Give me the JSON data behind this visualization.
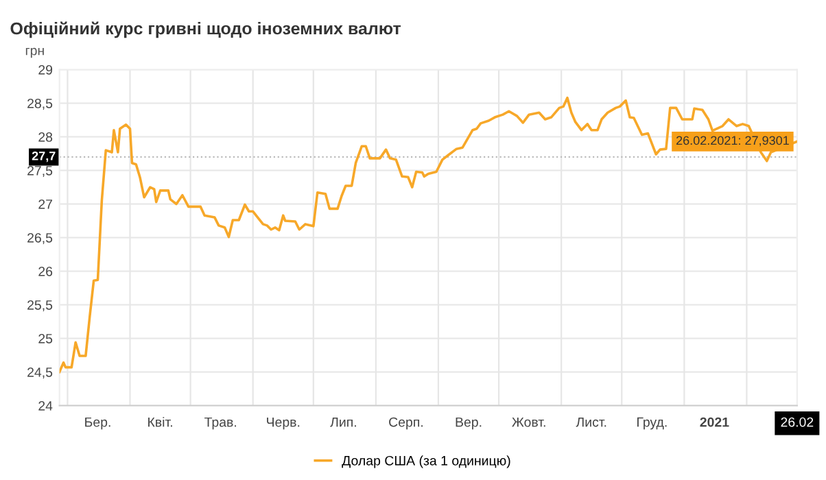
{
  "chart_data": {
    "type": "line",
    "title": "Офіційний курс гривні щодо іноземних валют",
    "ylabel": "грн",
    "xlim": [
      "2020-02-26",
      "2021-02-26"
    ],
    "ylim": [
      24,
      29
    ],
    "yticks": [
      24,
      {
        "value": 24.5,
        "label": "24,5"
      },
      25,
      {
        "value": 25.5,
        "label": "25,5"
      },
      26,
      {
        "value": 26.5,
        "label": "26,5"
      },
      27,
      {
        "value": 27.5,
        "label": "27,5"
      },
      28,
      {
        "value": 28.5,
        "label": "28,5"
      },
      29
    ],
    "xticks": [
      {
        "value": "2020-03-01",
        "label": null
      },
      {
        "value": "2020-04-01",
        "label": null
      },
      {
        "value": "2020-05-01",
        "label": null
      },
      {
        "value": "2020-06-01",
        "label": null
      },
      {
        "value": "2020-07-01",
        "label": null
      },
      {
        "value": "2020-08-01",
        "label": null
      },
      {
        "value": "2020-09-01",
        "label": null
      },
      {
        "value": "2020-10-01",
        "label": null
      },
      {
        "value": "2020-11-01",
        "label": null
      },
      {
        "value": "2020-12-01",
        "label": null
      },
      {
        "value": "2021-01-01",
        "label": null
      },
      {
        "value": "2021-02-01",
        "label": null
      },
      {
        "value": "2020-03-16",
        "label": "Бер."
      },
      {
        "value": "2020-04-16",
        "label": "Квіт."
      },
      {
        "value": "2020-05-16",
        "label": "Трав."
      },
      {
        "value": "2020-06-16",
        "label": "Черв."
      },
      {
        "value": "2020-07-16",
        "label": "Лип."
      },
      {
        "value": "2020-08-16",
        "label": "Серп."
      },
      {
        "value": "2020-09-16",
        "label": "Вер."
      },
      {
        "value": "2020-10-16",
        "label": "Жовт."
      },
      {
        "value": "2020-11-16",
        "label": "Лист."
      },
      {
        "value": "2020-12-16",
        "label": "Груд."
      },
      {
        "value": "2021-01-16",
        "label": "2021"
      },
      {
        "value": "2021-02-26",
        "label": "26.02"
      }
    ],
    "grid": true,
    "legend": "bottom",
    "marker": "none",
    "line_style": "solid",
    "ref_lines": [
      {
        "axis": "y",
        "value": 27.7,
        "label": "27,7",
        "color": "#bbbbbb",
        "line_style": "dotted"
      }
    ],
    "annotations": [
      {
        "text": "26.02.2021: 27,9301",
        "x": "2021-02-26",
        "y": 27.9301
      }
    ],
    "series": [
      {
        "name": "Долар США (за 1 одиницю)",
        "color": "#f7a829",
        "x": [
          "2020-02-26",
          "2020-02-28",
          "2020-02-29",
          "2020-03-03",
          "2020-03-05",
          "2020-03-07",
          "2020-03-10",
          "2020-03-12",
          "2020-03-14",
          "2020-03-16",
          "2020-03-18",
          "2020-03-20",
          "2020-03-23",
          "2020-03-24",
          "2020-03-26",
          "2020-03-27",
          "2020-03-30",
          "2020-04-01",
          "2020-04-02",
          "2020-04-04",
          "2020-04-06",
          "2020-04-08",
          "2020-04-11",
          "2020-04-13",
          "2020-04-14",
          "2020-04-16",
          "2020-04-20",
          "2020-04-21",
          "2020-04-24",
          "2020-04-27",
          "2020-04-30",
          "2020-05-06",
          "2020-05-08",
          "2020-05-13",
          "2020-05-15",
          "2020-05-18",
          "2020-05-20",
          "2020-05-22",
          "2020-05-25",
          "2020-05-28",
          "2020-05-30",
          "2020-06-01",
          "2020-06-06",
          "2020-06-08",
          "2020-06-10",
          "2020-06-12",
          "2020-06-14",
          "2020-06-16",
          "2020-06-17",
          "2020-06-22",
          "2020-06-24",
          "2020-06-27",
          "2020-07-01",
          "2020-07-03",
          "2020-07-07",
          "2020-07-09",
          "2020-07-13",
          "2020-07-15",
          "2020-07-17",
          "2020-07-20",
          "2020-07-22",
          "2020-07-25",
          "2020-07-27",
          "2020-07-29",
          "2020-08-03",
          "2020-08-06",
          "2020-08-08",
          "2020-08-11",
          "2020-08-14",
          "2020-08-17",
          "2020-08-19",
          "2020-08-21",
          "2020-08-24",
          "2020-08-25",
          "2020-08-27",
          "2020-08-31",
          "2020-09-03",
          "2020-09-06",
          "2020-09-10",
          "2020-09-13",
          "2020-09-18",
          "2020-09-20",
          "2020-09-22",
          "2020-09-26",
          "2020-09-29",
          "2020-10-03",
          "2020-10-06",
          "2020-10-10",
          "2020-10-13",
          "2020-10-16",
          "2020-10-21",
          "2020-10-24",
          "2020-10-27",
          "2020-10-31",
          "2020-11-02",
          "2020-11-04",
          "2020-11-06",
          "2020-11-08",
          "2020-11-11",
          "2020-11-14",
          "2020-11-16",
          "2020-11-19",
          "2020-11-21",
          "2020-11-24",
          "2020-11-28",
          "2020-11-30",
          "2020-12-03",
          "2020-12-05",
          "2020-12-07",
          "2020-12-11",
          "2020-12-14",
          "2020-12-18",
          "2020-12-20",
          "2020-12-23",
          "2020-12-25",
          "2020-12-28",
          "2020-12-31",
          "2021-01-05",
          "2021-01-06",
          "2021-01-10",
          "2021-01-13",
          "2021-01-15",
          "2021-01-20",
          "2021-01-23",
          "2021-01-27",
          "2021-01-30",
          "2021-02-02",
          "2021-02-08",
          "2021-02-11",
          "2021-02-13",
          "2021-02-26"
        ],
        "values": [
          24.5,
          24.64,
          24.57,
          24.57,
          24.94,
          24.74,
          24.74,
          25.32,
          25.86,
          25.87,
          27.05,
          27.8,
          27.77,
          28.1,
          27.77,
          28.12,
          28.18,
          28.12,
          27.61,
          27.59,
          27.39,
          27.1,
          27.25,
          27.22,
          27.03,
          27.2,
          27.2,
          27.07,
          27.0,
          27.13,
          26.96,
          26.96,
          26.83,
          26.8,
          26.68,
          26.65,
          26.51,
          26.76,
          26.76,
          26.99,
          26.89,
          26.89,
          26.7,
          26.68,
          26.62,
          26.65,
          26.61,
          26.83,
          26.75,
          26.74,
          26.62,
          26.7,
          26.67,
          27.17,
          27.15,
          26.93,
          26.93,
          27.12,
          27.27,
          27.27,
          27.61,
          27.86,
          27.86,
          27.68,
          27.68,
          27.81,
          27.68,
          27.66,
          27.41,
          27.4,
          27.25,
          27.48,
          27.47,
          27.41,
          27.45,
          27.48,
          27.66,
          27.73,
          27.82,
          27.84,
          28.1,
          28.12,
          28.2,
          28.24,
          28.29,
          28.33,
          28.38,
          28.31,
          28.21,
          28.33,
          28.36,
          28.26,
          28.29,
          28.43,
          28.45,
          28.58,
          28.36,
          28.22,
          28.1,
          28.19,
          28.1,
          28.1,
          28.26,
          28.36,
          28.43,
          28.45,
          28.54,
          28.29,
          28.28,
          28.03,
          28.05,
          27.74,
          27.81,
          27.82,
          28.43,
          28.43,
          28.26,
          28.26,
          28.42,
          28.4,
          28.26,
          28.09,
          28.16,
          28.26,
          28.16,
          28.19,
          28.16,
          27.77,
          27.64,
          27.77,
          27.9301
        ]
      }
    ]
  }
}
